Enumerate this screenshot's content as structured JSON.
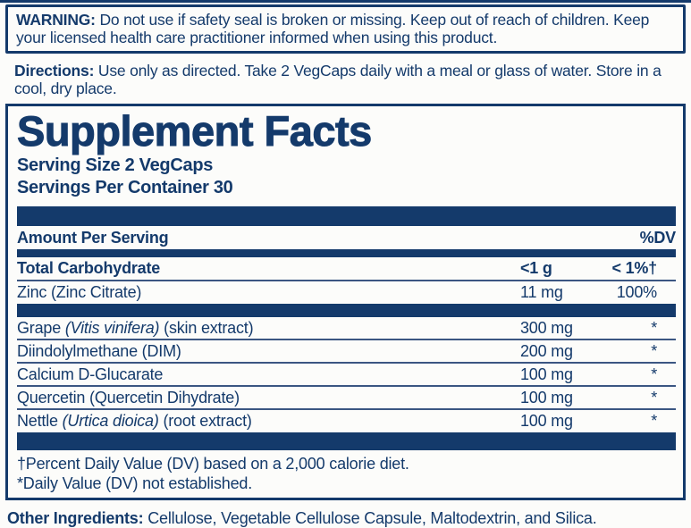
{
  "colors": {
    "navy": "#143a6b",
    "background": "#fcfcfa"
  },
  "warning": {
    "label": "WARNING:",
    "text": "Do not use if safety seal is broken or missing. Keep out of reach of children. Keep your licensed health care practitioner informed when using this product."
  },
  "directions": {
    "label": "Directions:",
    "text": "Use only as directed. Take 2 VegCaps daily with a meal or glass of water. Store in a cool, dry place."
  },
  "supplement_facts": {
    "title": "Supplement Facts",
    "serving_size": "Serving Size 2 VegCaps",
    "servings_per_container": "Servings Per Container 30",
    "columns": {
      "amount_header": "Amount Per Serving",
      "dv_header": "%DV"
    },
    "daily_rows": [
      {
        "name": "Total Carbohydrate",
        "amount": "<1 g",
        "dv": "< 1%†"
      },
      {
        "name": "Zinc (Zinc Citrate)",
        "amount": "11 mg",
        "dv": "100%"
      }
    ],
    "ingredient_rows": [
      {
        "name_pre": "Grape ",
        "name_italic": "(Vitis vinifera)",
        "name_post": " (skin extract)",
        "amount": "300 mg",
        "dv": "*"
      },
      {
        "name_pre": "Diindolylmethane (DIM)",
        "name_italic": "",
        "name_post": "",
        "amount": "200 mg",
        "dv": "*"
      },
      {
        "name_pre": "Calcium D-Glucarate",
        "name_italic": "",
        "name_post": "",
        "amount": "100 mg",
        "dv": "*"
      },
      {
        "name_pre": "Quercetin (Quercetin Dihydrate)",
        "name_italic": "",
        "name_post": "",
        "amount": "100 mg",
        "dv": "*"
      },
      {
        "name_pre": "Nettle ",
        "name_italic": "(Urtica dioica)",
        "name_post": " (root extract)",
        "amount": "100 mg",
        "dv": "*"
      }
    ],
    "footnotes": [
      "†Percent Daily Value (DV) based on a 2,000 calorie diet.",
      "*Daily Value (DV) not established."
    ]
  },
  "other_ingredients": {
    "label": "Other Ingredients:",
    "text": "Cellulose, Vegetable Cellulose Capsule, Maltodextrin, and Silica."
  }
}
